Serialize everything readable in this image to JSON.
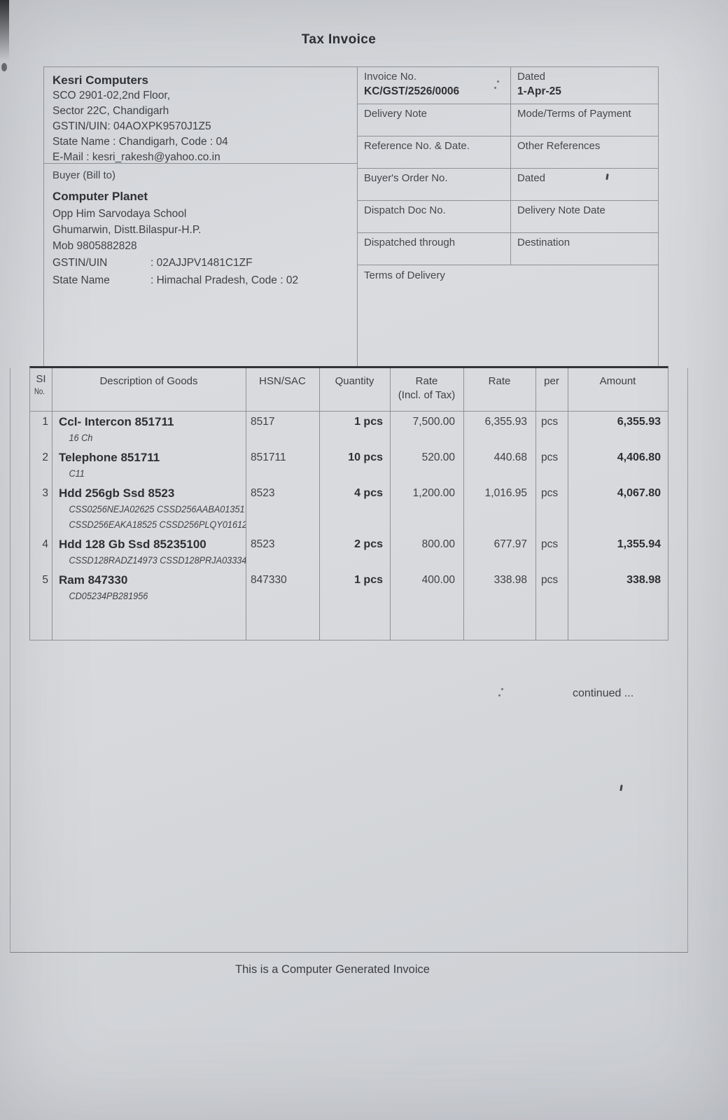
{
  "title": "Tax Invoice",
  "colors": {
    "paper": "#d6d8db",
    "ink": "#35383d",
    "line": "#8e9196"
  },
  "seller": {
    "name": "Kesri Computers",
    "address_lines": [
      "SCO 2901-02,2nd Floor,",
      "Sector 22C, Chandigarh"
    ],
    "gstin_line": "GSTIN/UIN: 04AOXPK9570J1Z5",
    "state_line": "State Name :  Chandigarh, Code : 04",
    "email_line": "E-Mail : kesri_rakesh@yahoo.co.in"
  },
  "buyer": {
    "section_label": "Buyer (Bill to)",
    "name": "Computer Planet",
    "address_lines": [
      "Opp Him Sarvodaya School",
      "Ghumarwin, Distt.Bilaspur-H.P.",
      "Mob 9805882828"
    ],
    "gstin_label": "GSTIN/UIN",
    "gstin_value": ": 02AJJPV1481C1ZF",
    "state_label": "State Name",
    "state_value": ": Himachal Pradesh, Code : 02"
  },
  "details": {
    "rows": [
      {
        "left_label": "Invoice No.",
        "left_value": "KC/GST/2526/0006",
        "right_label": "Dated",
        "right_value": "1-Apr-25"
      },
      {
        "left_label": "Delivery Note",
        "left_value": "",
        "right_label": "Mode/Terms of Payment",
        "right_value": ""
      },
      {
        "left_label": "Reference No. & Date.",
        "left_value": "",
        "right_label": "Other References",
        "right_value": ""
      },
      {
        "left_label": "Buyer's Order No.",
        "left_value": "",
        "right_label": "Dated",
        "right_value": ""
      },
      {
        "left_label": "Dispatch Doc No.",
        "left_value": "",
        "right_label": "Delivery Note Date",
        "right_value": ""
      },
      {
        "left_label": "Dispatched through",
        "left_value": "",
        "right_label": "Destination",
        "right_value": ""
      }
    ],
    "terms_label": "Terms of Delivery"
  },
  "table": {
    "headers": {
      "sl_line1": "SI",
      "sl_line2": "No.",
      "description": "Description of Goods",
      "hsn": "HSN/SAC",
      "quantity": "Quantity",
      "rate_incl_line1": "Rate",
      "rate_incl_line2": "(Incl. of Tax)",
      "rate": "Rate",
      "per": "per",
      "amount": "Amount"
    },
    "items": [
      {
        "sl": "1",
        "description": "Ccl- Intercon 851711",
        "serial_lines": [
          "16 Ch"
        ],
        "hsn": "8517",
        "quantity": "1 pcs",
        "rate_incl": "7,500.00",
        "rate": "6,355.93",
        "per": "pcs",
        "amount": "6,355.93"
      },
      {
        "sl": "2",
        "description": "Telephone 851711",
        "serial_lines": [
          "C11"
        ],
        "hsn": "851711",
        "quantity": "10 pcs",
        "rate_incl": "520.00",
        "rate": "440.68",
        "per": "pcs",
        "amount": "4,406.80"
      },
      {
        "sl": "3",
        "description": "Hdd 256gb Ssd 8523",
        "serial_lines": [
          "CSS0256NEJA02625 CSSD256AABA01351",
          "CSSD256EAKA18525 CSSD256PLQY01612"
        ],
        "hsn": "8523",
        "quantity": "4 pcs",
        "rate_incl": "1,200.00",
        "rate": "1,016.95",
        "per": "pcs",
        "amount": "4,067.80"
      },
      {
        "sl": "4",
        "description": "Hdd 128 Gb Ssd 85235100",
        "serial_lines": [
          "CSSD128RADZ14973 CSSD128PRJA03334"
        ],
        "hsn": "8523",
        "quantity": "2 pcs",
        "rate_incl": "800.00",
        "rate": "677.97",
        "per": "pcs",
        "amount": "1,355.94"
      },
      {
        "sl": "5",
        "description": "Ram 847330",
        "serial_lines": [
          "CD05234PB281956"
        ],
        "hsn": "847330",
        "quantity": "1 pcs",
        "rate_incl": "400.00",
        "rate": "338.98",
        "per": "pcs",
        "amount": "338.98"
      }
    ]
  },
  "continued_text": "continued ...",
  "footer": "This is a Computer Generated Invoice"
}
